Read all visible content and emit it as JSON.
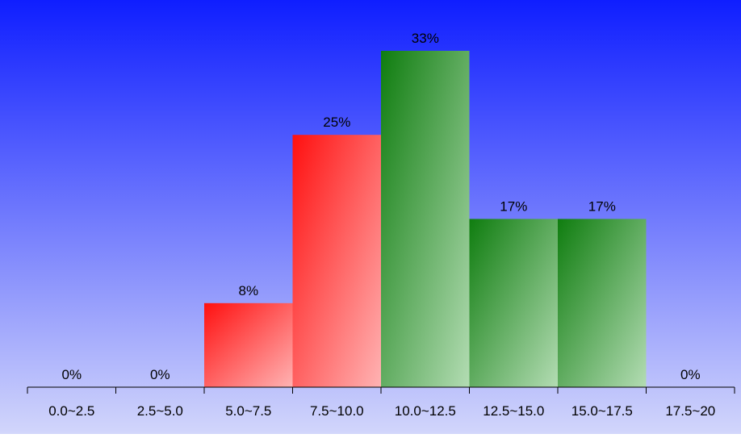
{
  "chart_data": {
    "type": "bar",
    "title": "",
    "xlabel": "",
    "ylabel": "",
    "ylim": [
      0,
      35
    ],
    "grid": false,
    "legend": "none",
    "categories": [
      "0.0~2.5",
      "2.5~5.0",
      "5.0~7.5",
      "7.5~10.0",
      "10.0~12.5",
      "12.5~15.0",
      "15.0~17.5",
      "17.5~20"
    ],
    "values": [
      0,
      0,
      8.33,
      25,
      33.33,
      16.67,
      16.67,
      0
    ],
    "value_labels": [
      "0%",
      "0%",
      "8%",
      "25%",
      "33%",
      "17%",
      "17%",
      "0%"
    ],
    "bar_colors": [
      "red",
      "red",
      "red",
      "red",
      "green",
      "green",
      "green",
      "green"
    ]
  },
  "colors": {
    "background_top": "#0f1eff",
    "background_bottom": "#d2d6fb",
    "red_dark": "#ff1010",
    "red_light": "#ffb3b3",
    "green_dark": "#0f7d0f",
    "green_light": "#b3dcb3",
    "axis": "#000000"
  }
}
